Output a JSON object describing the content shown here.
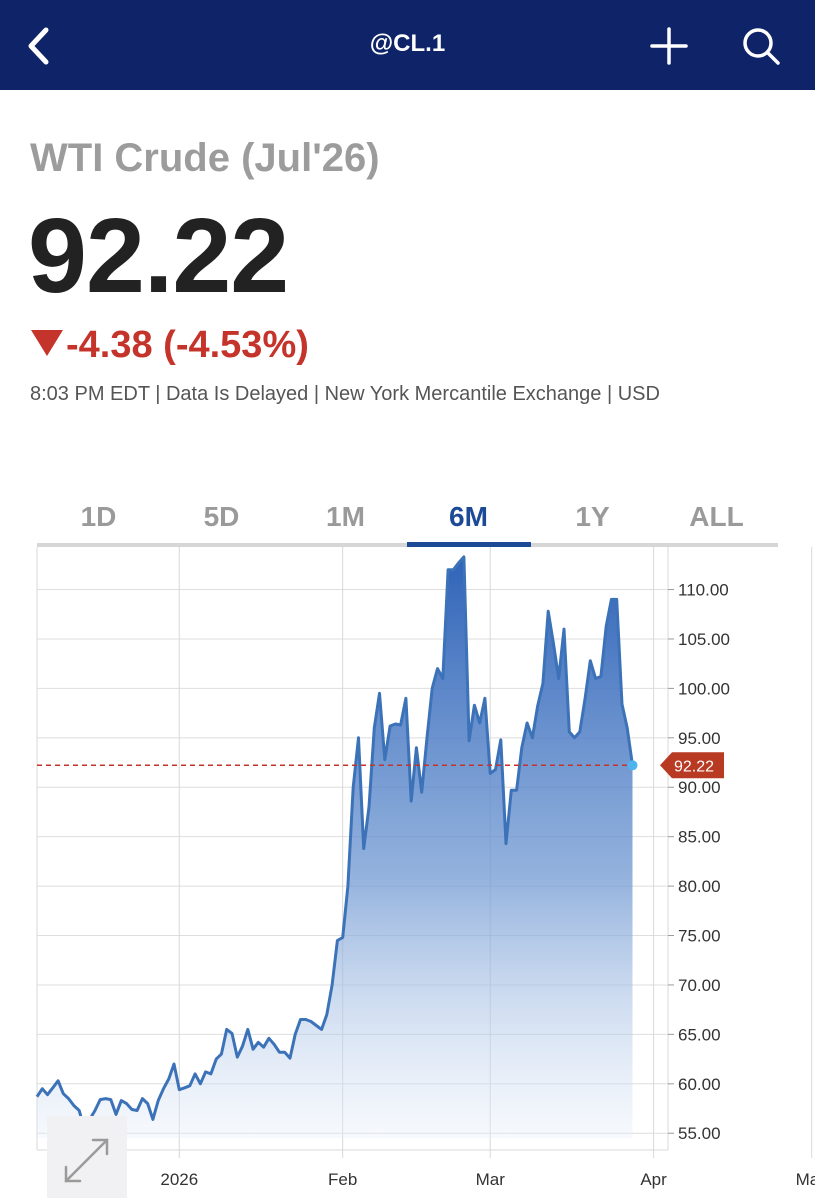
{
  "header": {
    "title": "@CL.1",
    "back_icon": "chevron-left-icon",
    "add_icon": "plus-icon",
    "search_icon": "search-icon",
    "bg_color": "#0f2468"
  },
  "quote": {
    "name": "WTI Crude (Jul'26)",
    "price": "92.22",
    "change": "-4.38 (-4.53%)",
    "direction_icon": "down-triangle-icon",
    "change_color": "#c5342b",
    "meta": "8:03 PM EDT | Data Is Delayed | New York Mercantile Exchange | USD"
  },
  "tabs": [
    {
      "label": "1D",
      "active": false
    },
    {
      "label": "5D",
      "active": false
    },
    {
      "label": "1M",
      "active": false
    },
    {
      "label": "6M",
      "active": true
    },
    {
      "label": "1Y",
      "active": false
    },
    {
      "label": "ALL",
      "active": false
    }
  ],
  "chart_data": {
    "type": "area",
    "x_tick_labels": [
      "2026",
      "Feb",
      "Mar",
      "Apr",
      "May"
    ],
    "x_ticks_day": [
      27,
      58,
      86,
      117,
      147
    ],
    "y_tick_labels": [
      "110.00",
      "105.00",
      "100.00",
      "95.00",
      "90.00",
      "85.00",
      "80.00",
      "75.00",
      "70.00",
      "65.00",
      "60.00",
      "55.00"
    ],
    "ylim": [
      53,
      114
    ],
    "last_price_label": "92.22",
    "last_price": 92.22,
    "series": [
      {
        "values": [
          [
            0,
            58.7
          ],
          [
            1,
            59.5
          ],
          [
            2,
            58.9
          ],
          [
            3,
            59.6
          ],
          [
            4,
            60.3
          ],
          [
            5,
            59.0
          ],
          [
            6,
            58.5
          ],
          [
            7,
            57.8
          ],
          [
            8,
            57.3
          ],
          [
            9,
            55.4
          ],
          [
            10,
            56.4
          ],
          [
            11,
            57.3
          ],
          [
            12,
            58.4
          ],
          [
            13,
            58.5
          ],
          [
            14,
            58.4
          ],
          [
            15,
            56.9
          ],
          [
            16,
            58.3
          ],
          [
            17,
            58.0
          ],
          [
            18,
            57.4
          ],
          [
            19,
            57.3
          ],
          [
            20,
            58.5
          ],
          [
            21,
            58.0
          ],
          [
            22,
            56.4
          ],
          [
            23,
            58.3
          ],
          [
            24,
            59.5
          ],
          [
            25,
            60.5
          ],
          [
            26,
            62.0
          ],
          [
            27,
            59.4
          ],
          [
            28,
            59.6
          ],
          [
            29,
            59.8
          ],
          [
            30,
            61.0
          ],
          [
            31,
            60.0
          ],
          [
            32,
            61.2
          ],
          [
            33,
            61.0
          ],
          [
            34,
            62.5
          ],
          [
            35,
            63.0
          ],
          [
            36,
            65.5
          ],
          [
            37,
            65.1
          ],
          [
            38,
            62.7
          ],
          [
            39,
            63.8
          ],
          [
            40,
            65.5
          ],
          [
            41,
            63.5
          ],
          [
            42,
            64.2
          ],
          [
            43,
            63.7
          ],
          [
            44,
            64.6
          ],
          [
            45,
            64.0
          ],
          [
            46,
            63.2
          ],
          [
            47,
            63.2
          ],
          [
            48,
            62.6
          ],
          [
            49,
            65.0
          ],
          [
            50,
            66.5
          ],
          [
            51,
            66.5
          ],
          [
            52,
            66.3
          ],
          [
            53,
            65.9
          ],
          [
            54,
            65.5
          ],
          [
            55,
            67.0
          ],
          [
            56,
            70.0
          ],
          [
            57,
            74.5
          ],
          [
            58,
            74.8
          ],
          [
            59,
            80.0
          ],
          [
            60,
            90.0
          ],
          [
            61,
            95.0
          ],
          [
            62,
            83.8
          ],
          [
            63,
            88.0
          ],
          [
            64,
            96.0
          ],
          [
            65,
            99.5
          ],
          [
            66,
            92.8
          ],
          [
            67,
            96.2
          ],
          [
            68,
            96.4
          ],
          [
            69,
            96.3
          ],
          [
            70,
            99.0
          ],
          [
            71,
            88.6
          ],
          [
            72,
            94.0
          ],
          [
            73,
            89.5
          ],
          [
            74,
            95.0
          ],
          [
            75,
            100.0
          ],
          [
            76,
            102.0
          ],
          [
            77,
            101.0
          ],
          [
            78,
            112.0
          ],
          [
            79,
            112.0
          ],
          [
            80,
            112.7
          ],
          [
            81,
            113.3
          ],
          [
            82,
            94.7
          ],
          [
            83,
            98.3
          ],
          [
            84,
            96.5
          ],
          [
            85,
            99.0
          ],
          [
            86,
            91.4
          ],
          [
            87,
            91.8
          ],
          [
            88,
            94.8
          ],
          [
            89,
            84.3
          ],
          [
            90,
            89.7
          ],
          [
            91,
            89.7
          ],
          [
            92,
            94.0
          ],
          [
            93,
            96.5
          ],
          [
            94,
            95.0
          ],
          [
            95,
            98.2
          ],
          [
            96,
            100.5
          ],
          [
            97,
            107.8
          ],
          [
            98,
            104.5
          ],
          [
            99,
            101.0
          ],
          [
            100,
            106.0
          ],
          [
            101,
            95.6
          ],
          [
            102,
            95.0
          ],
          [
            103,
            95.6
          ],
          [
            104,
            99.0
          ],
          [
            105,
            102.8
          ],
          [
            106,
            101.0
          ],
          [
            107,
            101.2
          ],
          [
            108,
            106.3
          ],
          [
            109,
            109.0
          ],
          [
            110,
            109.0
          ],
          [
            111,
            98.4
          ],
          [
            112,
            96.0
          ],
          [
            113,
            92.22
          ]
        ]
      }
    ]
  }
}
